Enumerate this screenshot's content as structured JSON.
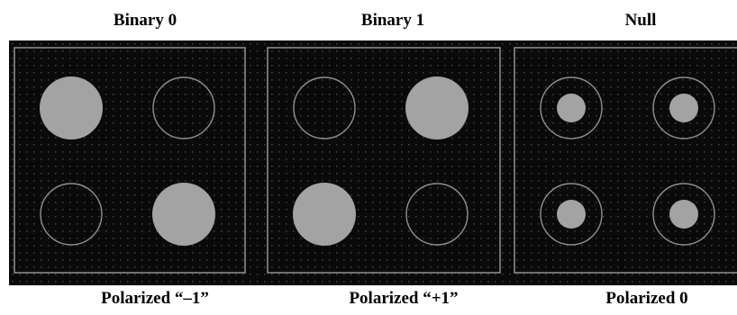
{
  "panels": [
    {
      "top_label": "Binary 0",
      "bottom_label": "Polarized “–1”",
      "cells": [
        "filled",
        "ring",
        "ring",
        "filled"
      ]
    },
    {
      "top_label": "Binary 1",
      "bottom_label": "Polarized “+1”",
      "cells": [
        "ring",
        "filled",
        "filled",
        "ring"
      ]
    },
    {
      "top_label": "Null",
      "bottom_label": "Polarized 0",
      "cells": [
        "ring-dot",
        "ring-dot",
        "ring-dot",
        "ring-dot"
      ]
    }
  ],
  "colors": {
    "background": "#0a0a0a",
    "frame": "#8a8a8a",
    "grid_dot": "#3c3c3c",
    "dot_fill": "#a3a3a3",
    "ring_stroke": "#8f8f8f"
  }
}
